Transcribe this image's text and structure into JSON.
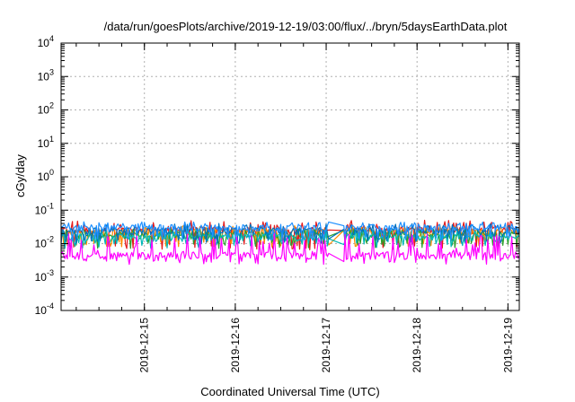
{
  "chart_data": {
    "type": "line",
    "title": "/data/run/goesPlots/archive/2019-12-19/03:00/flux/../bryn/5daysEarthData.plot",
    "xlabel": "Coordinated Universal Time (UTC)",
    "ylabel": "cGy/day",
    "yscale": "log",
    "ylim": [
      0.0001,
      10000
    ],
    "y_ticks": [
      {
        "base": "10",
        "exp": "-4",
        "value": 0.0001
      },
      {
        "base": "10",
        "exp": "-3",
        "value": 0.001
      },
      {
        "base": "10",
        "exp": "-2",
        "value": 0.01
      },
      {
        "base": "10",
        "exp": "-1",
        "value": 0.1
      },
      {
        "base": "10",
        "exp": "0",
        "value": 1
      },
      {
        "base": "10",
        "exp": "1",
        "value": 10
      },
      {
        "base": "10",
        "exp": "2",
        "value": 100
      },
      {
        "base": "10",
        "exp": "3",
        "value": 1000
      },
      {
        "base": "10",
        "exp": "4",
        "value": 10000
      }
    ],
    "x_range": [
      "2019-12-14T02:00",
      "2019-12-19T03:00"
    ],
    "x_ticks": [
      "2019-12-15",
      "2019-12-16",
      "2019-12-17",
      "2019-12-18",
      "2019-12-19"
    ],
    "grid": true,
    "legend": "none",
    "gap": [
      "2019-12-17T00:50",
      "2019-12-17T04:40"
    ],
    "series": [
      {
        "color": "#e41a1c",
        "base": 0.025,
        "spike": 0.05,
        "dip": 0.008
      },
      {
        "color": "#ff8c00",
        "base": 0.022,
        "spike": 0.035,
        "dip": 0.01
      },
      {
        "color": "#2ca02c",
        "base": 0.018,
        "spike": 0.028,
        "dip": 0.009
      },
      {
        "color": "#00b8b8",
        "base": 0.015,
        "spike": 0.026,
        "dip": 0.009
      },
      {
        "color": "#0072bd",
        "base": 0.024,
        "spike": 0.04,
        "dip": 0.012
      },
      {
        "color": "#1e90ff",
        "base": 0.03,
        "spike": 0.045,
        "dip": 0.015
      },
      {
        "color": "#ff00ff",
        "base": 0.0045,
        "spike": 0.02,
        "dip": 0.003
      }
    ]
  }
}
